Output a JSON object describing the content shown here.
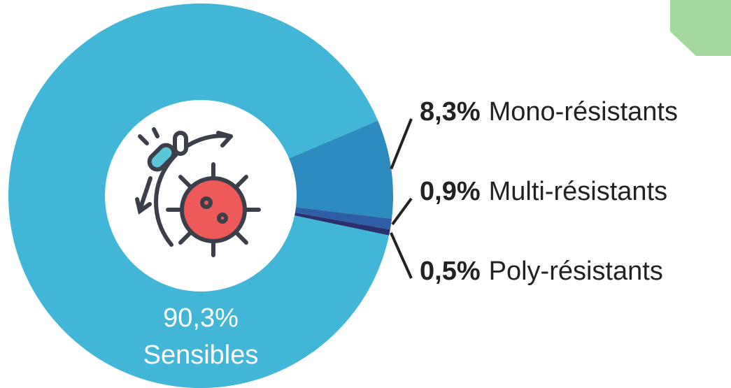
{
  "chart_data": {
    "type": "donut",
    "categories": [
      "Sensibles",
      "Mono-résistants",
      "Multi-résistants",
      "Poly-résistants"
    ],
    "values": [
      90.3,
      8.3,
      0.9,
      0.5
    ],
    "value_labels": [
      "90,3%",
      "8,3%",
      "0,9%",
      "0,5%"
    ],
    "colors": [
      "#41b6d6",
      "#2e8bbf",
      "#2d5ea6",
      "#2a2f6e"
    ]
  }
}
